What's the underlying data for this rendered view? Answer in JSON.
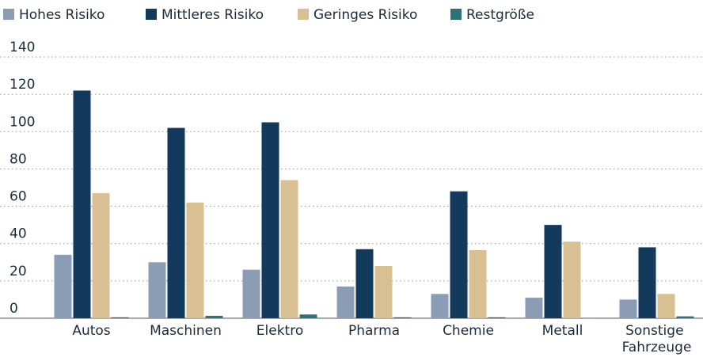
{
  "chart_data": {
    "type": "bar",
    "categories": [
      "Autos",
      "Maschinen",
      "Elektro",
      "Pharma",
      "Chemie",
      "Metall",
      "Sonstige Fahrzeuge"
    ],
    "series": [
      {
        "name": "Hohes Risiko",
        "color": "#8a9db5",
        "values": [
          34,
          30,
          26,
          17,
          13,
          11,
          10
        ]
      },
      {
        "name": "Mittleres Risiko",
        "color": "#133a5c",
        "values": [
          122,
          102,
          105,
          37,
          68,
          50,
          38
        ]
      },
      {
        "name": "Geringes Risiko",
        "color": "#d8c092",
        "values": [
          67,
          62,
          74,
          28,
          36.5,
          41,
          13
        ]
      },
      {
        "name": "Restgröße",
        "color": "#2e7277",
        "values": [
          0.5,
          1.3,
          2,
          0.5,
          0.5,
          0.2,
          1
        ]
      }
    ],
    "ylim": [
      0,
      140
    ],
    "yticks": [
      0,
      20,
      40,
      60,
      80,
      100,
      120,
      140
    ],
    "grid": true,
    "legend": "top"
  }
}
